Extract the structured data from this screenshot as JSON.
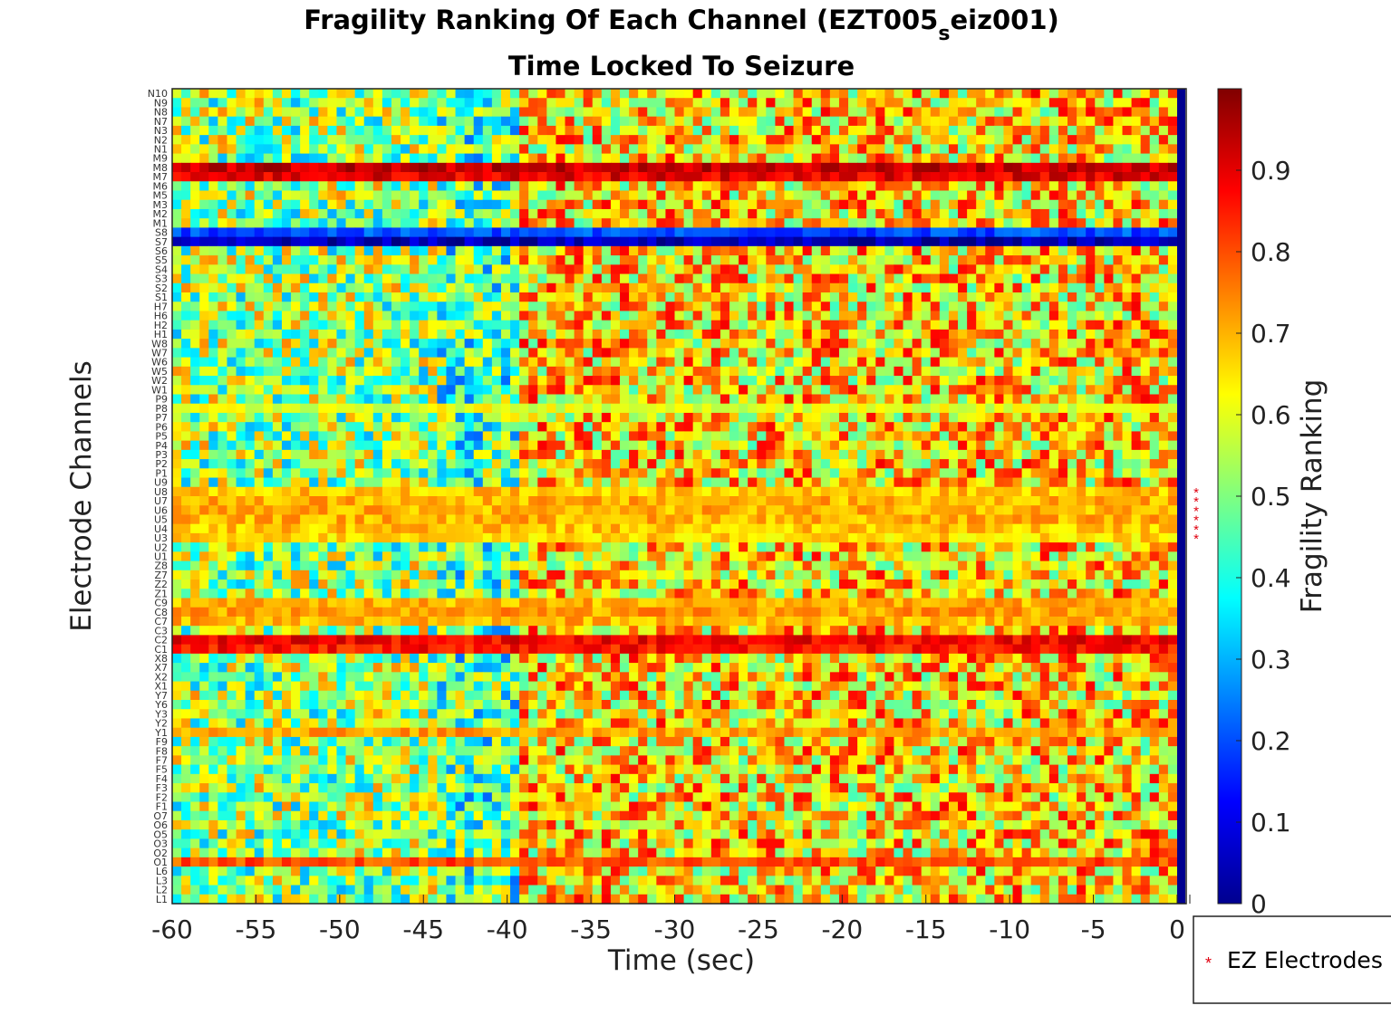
{
  "chart_data": {
    "type": "heatmap",
    "title": "Fragility Ranking Of Each Channel (EZT005",
    "title_subscript": "s",
    "title_suffix": "eiz001)",
    "subtitle": "Time Locked To Seizure",
    "xlabel": "Time (sec)",
    "ylabel": "Electrode Channels",
    "colorbar_label": "Fragility Ranking",
    "colormap": "jet",
    "xlim": [
      -60,
      0
    ],
    "xticks": [
      "-60",
      "-55",
      "-50",
      "-45",
      "-40",
      "-35",
      "-30",
      "-25",
      "-20",
      "-15",
      "-10",
      "-5",
      "0"
    ],
    "clim": [
      0,
      1
    ],
    "colorbar_ticks": [
      "0",
      "0.1",
      "0.2",
      "0.3",
      "0.4",
      "0.5",
      "0.6",
      "0.7",
      "0.8",
      "0.9"
    ],
    "channels_top_to_bottom": [
      "N10",
      "N9",
      "N8",
      "N7",
      "N3",
      "N2",
      "N1",
      "M9",
      "M8",
      "M7",
      "M6",
      "M5",
      "M3",
      "M2",
      "M1",
      "S8",
      "S7",
      "S6",
      "S5",
      "S4",
      "S3",
      "S2",
      "S1",
      "H7",
      "H6",
      "H2",
      "H1",
      "W8",
      "W7",
      "W6",
      "W5",
      "W2",
      "W1",
      "P9",
      "P8",
      "P7",
      "P6",
      "P5",
      "P4",
      "P3",
      "P2",
      "P1",
      "U9",
      "U8",
      "U7",
      "U6",
      "U5",
      "U4",
      "U3",
      "U2",
      "U1",
      "Z8",
      "Z7",
      "Z2",
      "Z1",
      "C9",
      "C8",
      "C7",
      "C3",
      "C2",
      "C1",
      "X8",
      "X7",
      "X2",
      "X1",
      "Y7",
      "Y6",
      "Y3",
      "Y2",
      "Y1",
      "F9",
      "F8",
      "F7",
      "F5",
      "F4",
      "F3",
      "F2",
      "F1",
      "O7",
      "O6",
      "O5",
      "O3",
      "O2",
      "O1",
      "L6",
      "L3",
      "L2",
      "L1"
    ],
    "ez_channels": [
      "U8",
      "U7",
      "U6",
      "U5",
      "U4",
      "U3"
    ],
    "seizure_marker_at": 0,
    "row_profiles": {
      "M8": 0.93,
      "M7": 0.9,
      "S7": 0.05,
      "S8": 0.2,
      "C2": 0.88,
      "C1": 0.86,
      "O1": 0.8,
      "P8": 0.6,
      "U8": 0.68,
      "U7": 0.7,
      "U6": 0.7,
      "U5": 0.7,
      "U4": 0.68,
      "U3": 0.66,
      "Y1": 0.72,
      "C9": 0.7,
      "C8": 0.72,
      "C7": 0.7
    },
    "epochs": [
      {
        "range": [
          -60,
          -44
        ],
        "level": 0.52
      },
      {
        "range": [
          -44,
          -39
        ],
        "level": 0.45
      },
      {
        "range": [
          -39,
          0
        ],
        "level": 0.66
      }
    ],
    "legend": {
      "marker": "*",
      "label": "EZ Electrodes",
      "position": "bottom-right"
    }
  }
}
